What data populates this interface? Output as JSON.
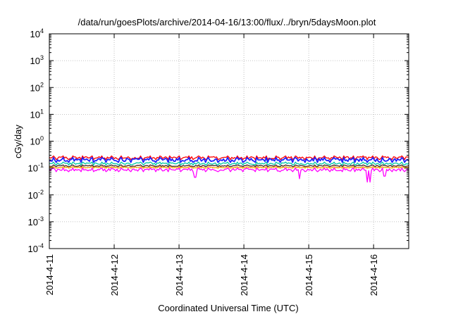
{
  "chart_data": {
    "type": "line",
    "title": "/data/run/goesPlots/archive/2014-04-16/13:00/flux/../bryn/5daysMoon.plot",
    "xlabel": "Coordinated Universal Time (UTC)",
    "ylabel": "cGy/day",
    "x_scale": "time",
    "y_scale": "log",
    "xlim": [
      "2014-04-11",
      "2014-04-16T13:00"
    ],
    "ylim": [
      0.0001,
      10000
    ],
    "x_ticks": [
      "2014-4-11",
      "2014-4-12",
      "2014-4-13",
      "2014-4-14",
      "2014-4-15",
      "2014-4-16"
    ],
    "y_ticks": [
      {
        "base": "10",
        "exp": "-4"
      },
      {
        "base": "10",
        "exp": "-3"
      },
      {
        "base": "10",
        "exp": "-2"
      },
      {
        "base": "10",
        "exp": "-1"
      },
      {
        "base": "10",
        "exp": "0"
      },
      {
        "base": "10",
        "exp": "1"
      },
      {
        "base": "10",
        "exp": "2"
      },
      {
        "base": "10",
        "exp": "3"
      },
      {
        "base": "10",
        "exp": "4"
      }
    ],
    "grid": true,
    "legend": "none",
    "series": [
      {
        "color": "#ff0000",
        "level": 0.24,
        "amplitude": 0.2
      },
      {
        "color": "#1f1fff",
        "level": 0.2,
        "amplitude": 0.26
      },
      {
        "color": "#00c9a7",
        "level": 0.145,
        "amplitude": 0.16
      },
      {
        "color": "#4a1f1f",
        "level": 0.12,
        "amplitude": 0.1
      },
      {
        "color": "#ffa500",
        "level": 0.105,
        "amplitude": 0.08
      },
      {
        "color": "#ff00ff",
        "level": 0.085,
        "amplitude": 0.2
      }
    ],
    "dips": [
      {
        "x": "2014-04-15T21:30",
        "y": 0.03
      },
      {
        "x": "2014-04-15T22:30",
        "y": 0.03
      },
      {
        "x": "2014-04-16T04:00",
        "y": 0.05
      },
      {
        "x": "2014-04-14T20:30",
        "y": 0.04
      },
      {
        "x": "2014-04-13T06:00",
        "y": 0.045
      }
    ]
  }
}
